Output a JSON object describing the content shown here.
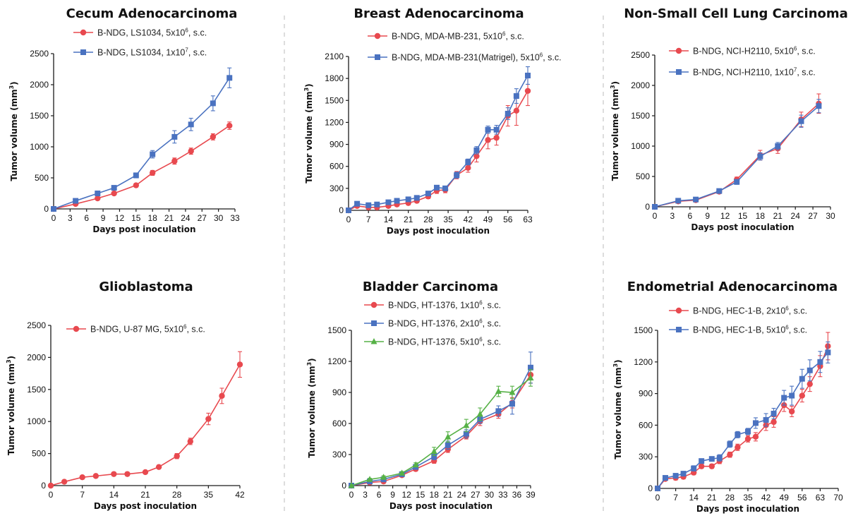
{
  "colors": {
    "red": "#E8494F",
    "blue": "#4A72C0",
    "green": "#56B146",
    "axis": "#1a1a1a",
    "divider": "#bbbbbb"
  },
  "chart_data": [
    {
      "type": "line",
      "title": "Cecum Adenocarcinoma",
      "xlabel": "Days post inoculation",
      "ylabel": "Tumor volume (mm³)",
      "xlim": [
        0,
        33
      ],
      "ylim": [
        0,
        2500
      ],
      "xticks": [
        0,
        3,
        6,
        9,
        12,
        15,
        18,
        21,
        24,
        27,
        30,
        33
      ],
      "yticks": [
        0,
        500,
        1000,
        1500,
        2000,
        2500
      ],
      "series": [
        {
          "name": "B-NDG, LS1034, 5x10⁶, s.c.",
          "color": "red",
          "marker": "circle",
          "x": [
            0,
            4,
            8,
            11,
            15,
            18,
            22,
            25,
            29,
            32
          ],
          "y": [
            0,
            80,
            170,
            250,
            380,
            580,
            770,
            930,
            1160,
            1340
          ],
          "err": [
            0,
            15,
            20,
            25,
            30,
            40,
            50,
            50,
            50,
            60
          ]
        },
        {
          "name": "B-NDG, LS1034, 1x10⁷, s.c.",
          "color": "blue",
          "marker": "square",
          "x": [
            0,
            4,
            8,
            11,
            15,
            18,
            22,
            25,
            29,
            32
          ],
          "y": [
            0,
            130,
            250,
            340,
            540,
            880,
            1160,
            1360,
            1700,
            2110
          ],
          "err": [
            0,
            20,
            30,
            30,
            40,
            60,
            100,
            100,
            120,
            160
          ]
        }
      ]
    },
    {
      "type": "line",
      "title": "Breast Adenocarcinoma",
      "xlabel": "Days post inoculation",
      "ylabel": "Tumor volume (mm³)",
      "xlim": [
        0,
        63
      ],
      "ylim": [
        0,
        2100
      ],
      "xticks": [
        0,
        7,
        14,
        21,
        28,
        35,
        42,
        49,
        56,
        63
      ],
      "yticks": [
        0,
        300,
        600,
        900,
        1200,
        1500,
        1800,
        2100
      ],
      "series": [
        {
          "name": "B-NDG, MDA-MB-231, 5x10⁶, s.c.",
          "color": "red",
          "marker": "circle",
          "x": [
            0,
            3,
            7,
            10,
            14,
            17,
            21,
            24,
            28,
            31,
            34,
            38,
            42,
            45,
            49,
            52,
            56,
            59,
            63
          ],
          "y": [
            0,
            60,
            40,
            40,
            60,
            80,
            100,
            130,
            190,
            270,
            280,
            480,
            580,
            740,
            960,
            990,
            1290,
            1360,
            1630
          ],
          "err": [
            0,
            15,
            15,
            15,
            15,
            20,
            25,
            25,
            30,
            40,
            40,
            50,
            60,
            80,
            120,
            100,
            140,
            200,
            200
          ]
        },
        {
          "name": "B-NDG, MDA-MB-231(Matrigel), 5x10⁶, s.c.",
          "color": "blue",
          "marker": "square",
          "x": [
            0,
            3,
            7,
            10,
            14,
            17,
            21,
            24,
            28,
            31,
            34,
            38,
            42,
            45,
            49,
            52,
            56,
            59,
            63
          ],
          "y": [
            0,
            90,
            70,
            80,
            110,
            130,
            150,
            170,
            230,
            310,
            300,
            480,
            660,
            820,
            1100,
            1100,
            1320,
            1560,
            1840
          ],
          "err": [
            0,
            20,
            15,
            15,
            20,
            20,
            25,
            30,
            30,
            30,
            30,
            40,
            40,
            50,
            50,
            60,
            80,
            100,
            120
          ]
        }
      ]
    },
    {
      "type": "line",
      "title": "Non-Small Cell Lung Carcinoma",
      "xlabel": "Days post inoculation",
      "ylabel": "Tumor volume (mm³)",
      "xlim": [
        0,
        30
      ],
      "ylim": [
        0,
        2500
      ],
      "xticks": [
        0,
        3,
        6,
        9,
        12,
        15,
        18,
        21,
        24,
        27,
        30
      ],
      "yticks": [
        0,
        500,
        1000,
        1500,
        2000,
        2500
      ],
      "series": [
        {
          "name": "B-NDG, NCI-H2110, 5x10⁶, s.c.",
          "color": "red",
          "marker": "circle",
          "x": [
            0,
            4,
            7,
            11,
            14,
            18,
            21,
            25,
            28
          ],
          "y": [
            0,
            90,
            110,
            250,
            450,
            850,
            960,
            1440,
            1700
          ],
          "err": [
            0,
            20,
            20,
            30,
            40,
            80,
            80,
            120,
            160
          ]
        },
        {
          "name": "B-NDG, NCI-H2110, 1x10⁷, s.c.",
          "color": "blue",
          "marker": "square",
          "x": [
            0,
            4,
            7,
            11,
            14,
            18,
            21,
            25,
            28
          ],
          "y": [
            0,
            100,
            120,
            260,
            410,
            830,
            1000,
            1410,
            1660
          ],
          "err": [
            0,
            20,
            20,
            30,
            40,
            60,
            60,
            100,
            110
          ]
        }
      ]
    },
    {
      "type": "line",
      "title": "Glioblastoma",
      "xlabel": "Days post inoculation",
      "ylabel": "Tumor volume (mm³)",
      "xlim": [
        0,
        42
      ],
      "ylim": [
        0,
        2500
      ],
      "xticks": [
        0,
        7,
        14,
        21,
        28,
        35,
        42
      ],
      "yticks": [
        0,
        500,
        1000,
        1500,
        2000,
        2500
      ],
      "series": [
        {
          "name": "B-NDG, U-87 MG, 5x10⁶, s.c.",
          "color": "red",
          "marker": "circle",
          "x": [
            0,
            3,
            7,
            10,
            14,
            17,
            21,
            24,
            28,
            31,
            35,
            38,
            42
          ],
          "y": [
            0,
            60,
            130,
            150,
            180,
            180,
            210,
            290,
            460,
            690,
            1040,
            1400,
            1890
          ],
          "err": [
            0,
            10,
            15,
            15,
            15,
            15,
            20,
            25,
            40,
            50,
            90,
            120,
            200
          ]
        }
      ]
    },
    {
      "type": "line",
      "title": "Bladder Carcinoma",
      "xlabel": "Days post inoculation",
      "ylabel": "Tumor volume (mm³)",
      "xlim": [
        0,
        39
      ],
      "ylim": [
        0,
        1500
      ],
      "xticks": [
        0,
        3,
        6,
        9,
        12,
        15,
        18,
        21,
        24,
        27,
        30,
        33,
        36,
        39
      ],
      "yticks": [
        0,
        300,
        600,
        900,
        1200,
        1500
      ],
      "series": [
        {
          "name": "B-NDG, HT-1376, 1x10⁶, s.c.",
          "color": "red",
          "marker": "circle",
          "x": [
            0,
            4,
            7,
            11,
            14,
            18,
            21,
            25,
            28,
            32,
            35,
            39
          ],
          "y": [
            0,
            30,
            40,
            100,
            160,
            240,
            350,
            480,
            620,
            690,
            800,
            1070
          ],
          "err": [
            0,
            10,
            10,
            15,
            20,
            25,
            30,
            30,
            40,
            40,
            50,
            80
          ]
        },
        {
          "name": "B-NDG, HT-1376, 2x10⁶, s.c.",
          "color": "blue",
          "marker": "square",
          "x": [
            0,
            4,
            7,
            11,
            14,
            18,
            21,
            25,
            28,
            32,
            35,
            39
          ],
          "y": [
            0,
            40,
            60,
            110,
            180,
            280,
            390,
            500,
            640,
            720,
            790,
            1140
          ],
          "err": [
            0,
            10,
            10,
            15,
            20,
            30,
            40,
            40,
            40,
            50,
            100,
            150
          ]
        },
        {
          "name": "B-NDG, HT-1376, 5x10⁶, s.c.",
          "color": "green",
          "marker": "triangle",
          "x": [
            0,
            4,
            7,
            11,
            14,
            18,
            21,
            25,
            28,
            32,
            35,
            39
          ],
          "y": [
            0,
            60,
            80,
            120,
            200,
            330,
            470,
            580,
            690,
            910,
            900,
            1040
          ],
          "err": [
            0,
            10,
            15,
            15,
            20,
            40,
            50,
            60,
            60,
            50,
            60,
            80
          ]
        }
      ]
    },
    {
      "type": "line",
      "title": "Endometrial Adenocarcinoma",
      "xlabel": "Days post inoculation",
      "ylabel": "Tumor volume (mm³)",
      "xlim": [
        0,
        70
      ],
      "ylim": [
        0,
        1500
      ],
      "xticks": [
        0,
        7,
        14,
        21,
        28,
        35,
        42,
        49,
        56,
        63,
        70
      ],
      "yticks": [
        0,
        300,
        600,
        900,
        1200,
        1500
      ],
      "series": [
        {
          "name": "B-NDG, HEC-1-B, 2x10⁶, s.c.",
          "color": "red",
          "marker": "circle",
          "x": [
            0,
            3,
            7,
            10,
            14,
            17,
            21,
            24,
            28,
            31,
            35,
            38,
            42,
            45,
            49,
            52,
            56,
            59,
            63,
            66
          ],
          "y": [
            0,
            90,
            100,
            110,
            150,
            210,
            210,
            260,
            320,
            390,
            470,
            490,
            600,
            630,
            790,
            730,
            880,
            990,
            1160,
            1350
          ],
          "err": [
            0,
            15,
            20,
            20,
            20,
            20,
            20,
            25,
            25,
            30,
            30,
            40,
            50,
            50,
            60,
            50,
            60,
            70,
            100,
            130
          ]
        },
        {
          "name": "B-NDG, HEC-1-B, 5x10⁶, s.c.",
          "color": "blue",
          "marker": "square",
          "x": [
            0,
            3,
            7,
            10,
            14,
            17,
            21,
            24,
            28,
            31,
            35,
            38,
            42,
            45,
            49,
            52,
            56,
            59,
            63,
            66
          ],
          "y": [
            0,
            100,
            120,
            140,
            190,
            260,
            280,
            290,
            420,
            510,
            540,
            620,
            650,
            710,
            860,
            880,
            1040,
            1120,
            1200,
            1290
          ],
          "err": [
            0,
            20,
            20,
            20,
            25,
            20,
            20,
            30,
            30,
            30,
            30,
            50,
            60,
            50,
            70,
            90,
            90,
            100,
            100,
            100
          ]
        }
      ]
    }
  ]
}
